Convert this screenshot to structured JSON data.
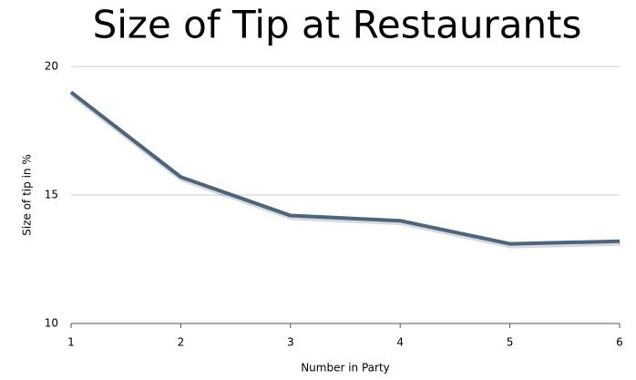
{
  "chart_data": {
    "type": "line",
    "title": "Size of Tip at Restaurants",
    "x_label": "Number in Party",
    "y_label": "Size of tip in %",
    "x": [
      1,
      2,
      3,
      4,
      5,
      6
    ],
    "series": [
      {
        "name": "Size of tip",
        "color": "#4a6580",
        "values": [
          19,
          15.7,
          14.2,
          14.0,
          13.1,
          13.2
        ]
      }
    ],
    "xlim": [
      1,
      6
    ],
    "xticks": [
      1,
      2,
      3,
      4,
      5,
      6
    ],
    "ylim": [
      10,
      20
    ],
    "yticks": [
      10,
      15,
      20
    ],
    "grid": true
  }
}
